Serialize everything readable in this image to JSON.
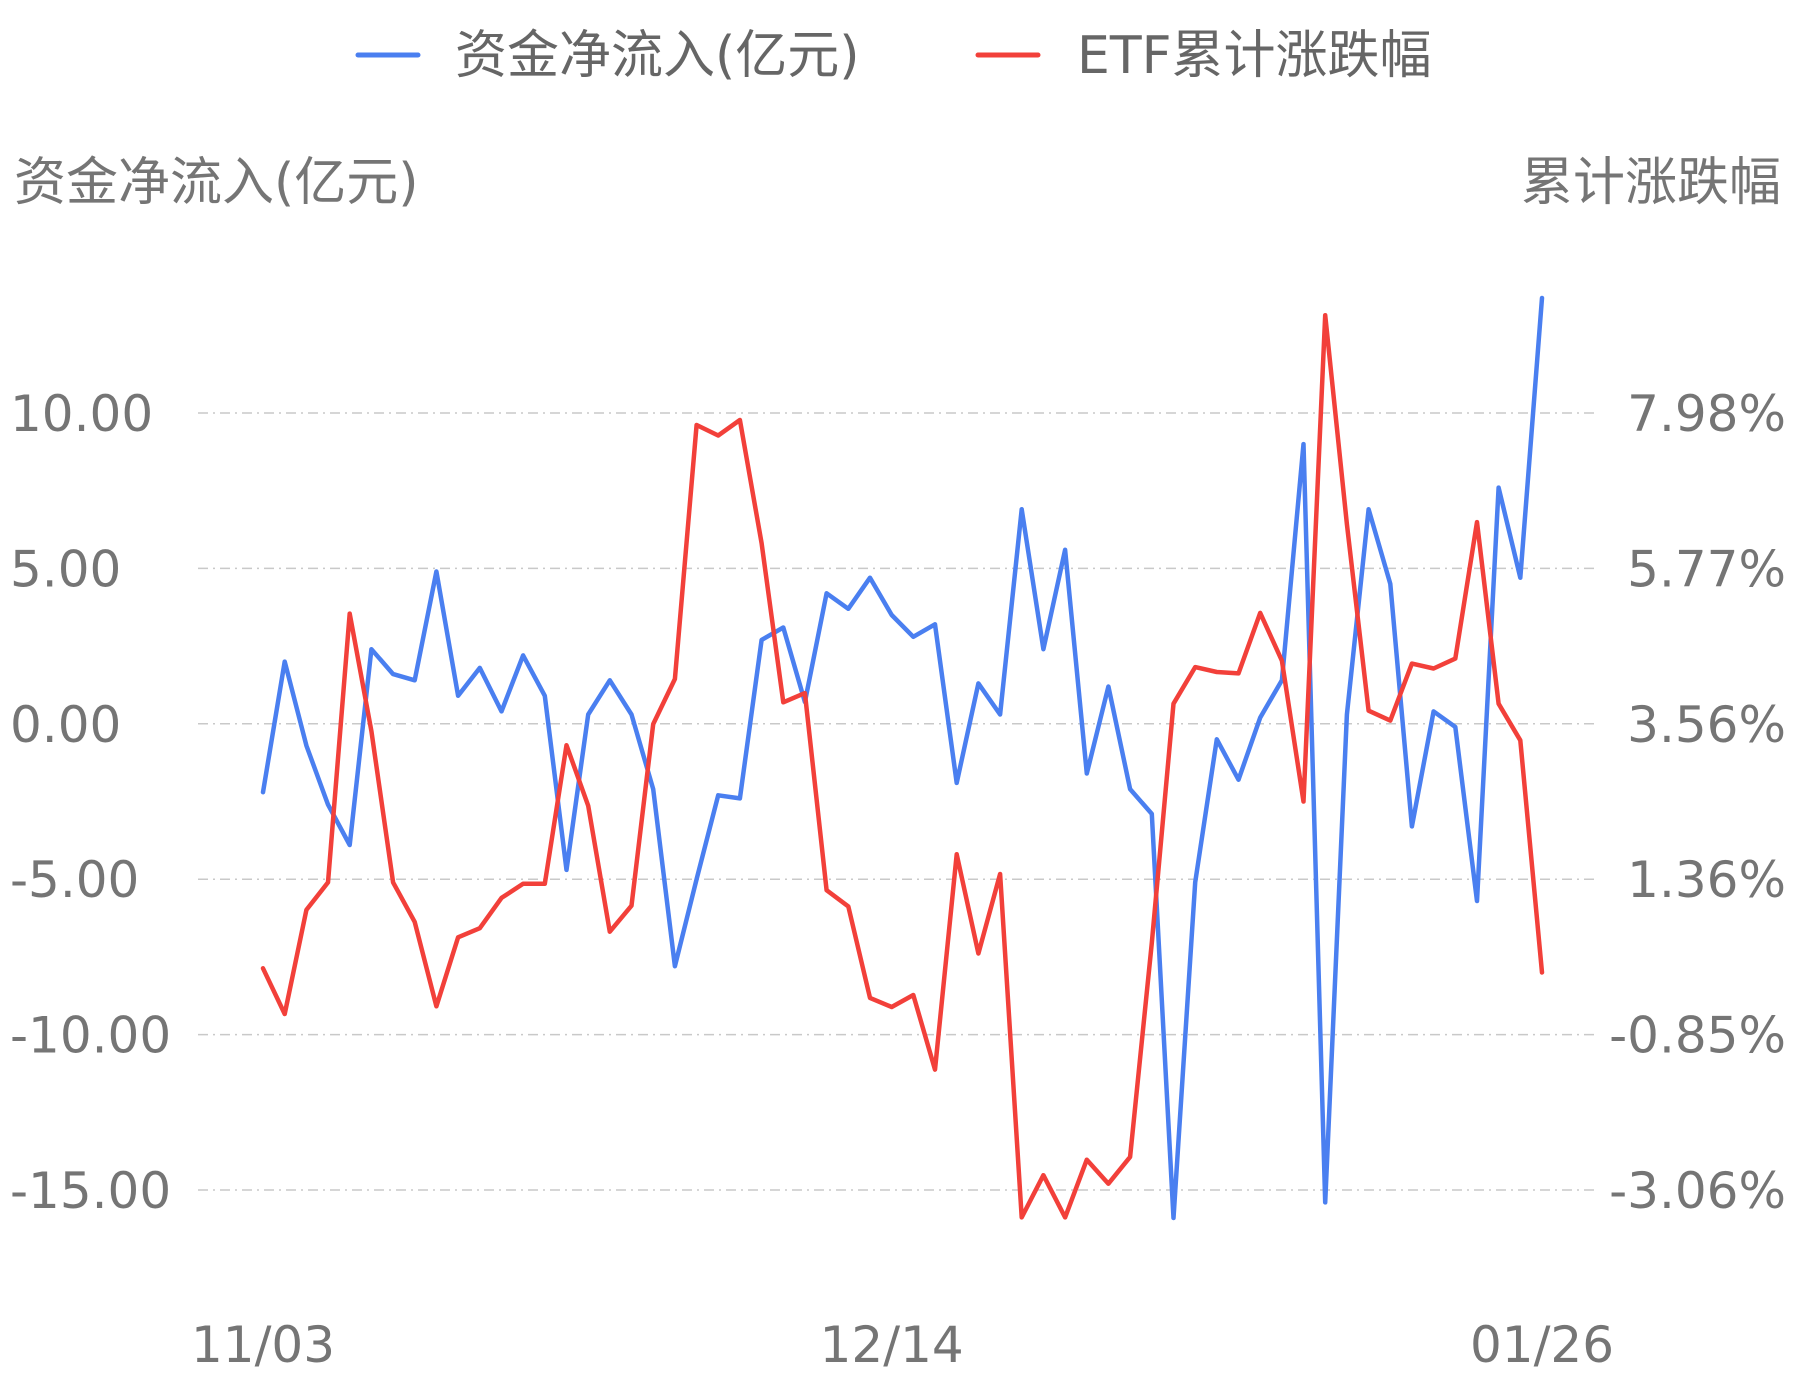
{
  "chart_data": {
    "type": "line",
    "legend": {
      "placement": "top-center"
    },
    "y_left": {
      "label": "资金净流入(亿元)",
      "ticks": [
        "10.00",
        "5.00",
        "0.00",
        "-5.00",
        "-10.00",
        "-15.00"
      ],
      "tick_values": [
        10,
        5,
        0,
        -5,
        -10,
        -15
      ]
    },
    "y_right": {
      "label": "累计涨跌幅",
      "ticks": [
        "7.98%",
        "5.77%",
        "3.56%",
        "1.36%",
        "-0.85%",
        "-3.06%"
      ],
      "tick_values": [
        7.98,
        5.77,
        3.56,
        1.36,
        -0.85,
        -3.06
      ]
    },
    "x_ticks": [
      {
        "label": "11/03",
        "index": 0
      },
      {
        "label": "12/14",
        "index": 29
      },
      {
        "label": "01/26",
        "index": 59
      }
    ],
    "grid": true,
    "series": [
      {
        "name": "资金净流入(亿元)",
        "axis": "left",
        "color": "#4a7ff0",
        "values": [
          -2.2,
          2.0,
          -0.7,
          -2.6,
          -3.9,
          2.4,
          1.6,
          1.4,
          4.9,
          0.9,
          1.8,
          0.4,
          2.2,
          0.9,
          -4.7,
          0.3,
          1.4,
          0.3,
          -2.1,
          -7.8,
          -5.0,
          -2.3,
          -2.4,
          2.7,
          3.1,
          0.7,
          4.2,
          3.7,
          4.7,
          3.5,
          2.8,
          3.2,
          -1.9,
          1.3,
          0.3,
          6.9,
          2.4,
          5.6,
          -1.6,
          1.2,
          -2.1,
          -2.9,
          -15.9,
          -5.1,
          -0.5,
          -1.8,
          0.2,
          1.4,
          9.0,
          -15.4,
          0.3,
          6.9,
          4.5,
          -3.3,
          0.4,
          -0.1,
          -5.7,
          7.6,
          4.7,
          13.7
        ]
      },
      {
        "name": "ETF累计涨跌幅",
        "axis": "right",
        "color": "#f2403a",
        "values": [
          0.09,
          -0.56,
          0.92,
          1.31,
          5.13,
          3.46,
          1.31,
          0.75,
          -0.45,
          0.53,
          0.66,
          1.09,
          1.29,
          1.29,
          3.26,
          2.4,
          0.61,
          0.98,
          3.56,
          4.2,
          7.81,
          7.66,
          7.88,
          6.13,
          3.87,
          4.0,
          1.2,
          0.97,
          -0.33,
          -0.46,
          -0.29,
          -1.35,
          1.71,
          0.3,
          1.43,
          -3.45,
          -2.85,
          -3.45,
          -2.63,
          -2.97,
          -2.59,
          0.45,
          3.85,
          4.37,
          4.3,
          4.28,
          5.14,
          4.46,
          2.46,
          9.37,
          6.4,
          3.75,
          3.61,
          4.42,
          4.35,
          4.49,
          6.43,
          3.85,
          3.33,
          0.03
        ]
      }
    ]
  }
}
